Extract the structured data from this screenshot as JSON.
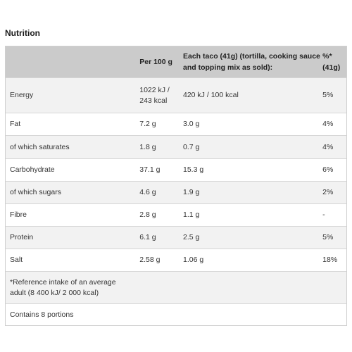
{
  "title": "Nutrition",
  "headers": {
    "per100": "Per 100 g",
    "taco_line1": "Each taco (41g) (tortilla, cooking sauce",
    "taco_line2": "and topping mix as sold):",
    "pct_line1": "%*",
    "pct_line2": "(41g)"
  },
  "rows": [
    {
      "label": "Energy",
      "per100_line1": "1022 kJ /",
      "per100_line2": "243 kcal",
      "taco": "420 kJ / 100 kcal",
      "pct": "5%"
    },
    {
      "label": "Fat",
      "per100": "7.2 g",
      "taco": "3.0 g",
      "pct": "4%"
    },
    {
      "label": "of which saturates",
      "per100": "1.8 g",
      "taco": "0.7 g",
      "pct": "4%"
    },
    {
      "label": "Carbohydrate",
      "per100": "37.1 g",
      "taco": "15.3 g",
      "pct": "6%"
    },
    {
      "label": "of which sugars",
      "per100": "4.6 g",
      "taco": "1.9 g",
      "pct": "2%"
    },
    {
      "label": "Fibre",
      "per100": "2.8 g",
      "taco": "1.1 g",
      "pct": "-"
    },
    {
      "label": "Protein",
      "per100": "6.1 g",
      "taco": "2.5 g",
      "pct": "5%"
    },
    {
      "label": "Salt",
      "per100": "2.58 g",
      "taco": "1.06 g",
      "pct": "18%"
    }
  ],
  "footnote_line1": "*Reference intake of an average",
  "footnote_line2": "adult (8 400 kJ/ 2 000 kcal)",
  "portions": "Contains 8 portions"
}
